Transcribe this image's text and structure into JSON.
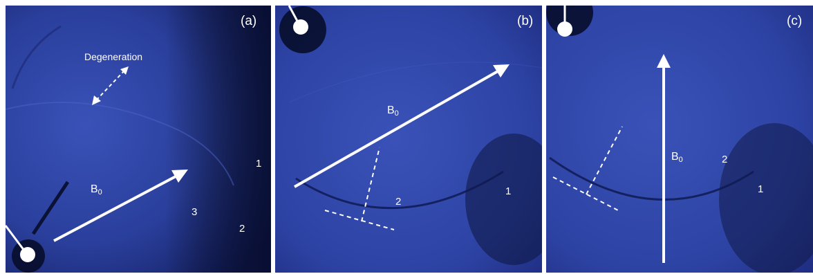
{
  "panels": [
    {
      "id": "a",
      "letter": "(a)",
      "field_label": "B",
      "field_sub": "0",
      "regions": [
        "1",
        "2",
        "3"
      ],
      "annotation": "Degeneration"
    },
    {
      "id": "b",
      "letter": "(b)",
      "field_label": "B",
      "field_sub": "0",
      "regions": [
        "1",
        "2"
      ]
    },
    {
      "id": "c",
      "letter": "(c)",
      "field_label": "B",
      "field_sub": "0",
      "regions": [
        "1",
        "2"
      ]
    }
  ],
  "colors": {
    "base": "#2a3f9c",
    "light": "#3a52b8",
    "dark": "#0d1540",
    "edge": "#050a25",
    "marker": "#ffffff"
  },
  "icons": [
    "probe-pin-icon",
    "field-arrow-icon"
  ]
}
